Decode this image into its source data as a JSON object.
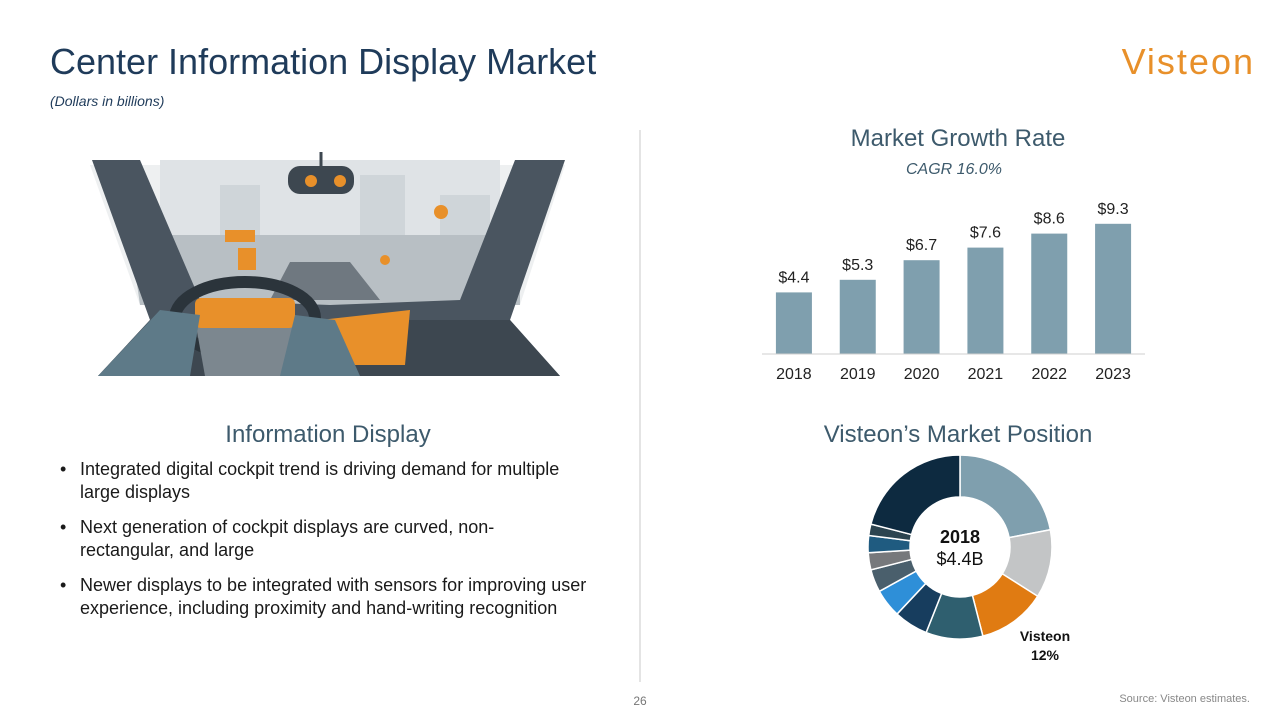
{
  "header": {
    "title": "Center Information Display Market",
    "subtitle": "(Dollars in billions)",
    "logo": "Visteon"
  },
  "info": {
    "heading": "Information Display",
    "bullets": [
      "Integrated digital cockpit trend is driving demand for multiple large displays",
      "Next generation of cockpit displays are curved, non-rectangular, and large",
      "Newer displays to be integrated with sensors for improving user experience, including proximity and hand-writing recognition"
    ]
  },
  "chart_data": [
    {
      "type": "bar",
      "title": "Market Growth Rate",
      "subtitle": "CAGR 16.0%",
      "categories": [
        "2018",
        "2019",
        "2020",
        "2021",
        "2022",
        "2023"
      ],
      "values": [
        4.4,
        5.3,
        6.7,
        7.6,
        8.6,
        9.3
      ],
      "value_labels": [
        "$4.4",
        "$5.3",
        "$6.7",
        "$7.6",
        "$8.6",
        "$9.3"
      ],
      "color": "#7f9fae",
      "ylim": [
        0,
        10
      ]
    },
    {
      "type": "donut",
      "title": "Visteon’s Market Position",
      "center_label": "2018",
      "center_value": "$4.4B",
      "categories": [
        null,
        null,
        "Visteon",
        null,
        null,
        null,
        null,
        null,
        null,
        null,
        null
      ],
      "values": [
        22,
        12,
        12,
        10,
        6,
        5,
        4,
        3,
        3,
        2,
        21
      ],
      "value_labels": [
        null,
        null,
        "12%",
        null,
        null,
        null,
        null,
        null,
        null,
        null,
        null
      ],
      "colors": [
        "#7f9fae",
        "#c3c5c6",
        "#e07b12",
        "#2f5f6f",
        "#173d5e",
        "#2e8fd8",
        "#4a5f6c",
        "#77797c",
        "#1f5b80",
        "#2c4450",
        "#0d2a40"
      ]
    }
  ],
  "footer": {
    "page": "26",
    "source": "Source: Visteon estimates."
  }
}
